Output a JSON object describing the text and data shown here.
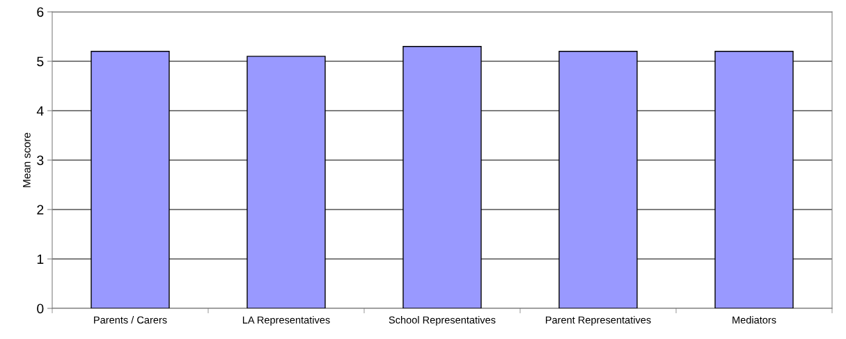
{
  "chart_data": {
    "type": "bar",
    "ylabel": "Mean score",
    "categories": [
      "Parents / Carers",
      "LA Representatives",
      "School Representatives",
      "Parent Representatives",
      "Mediators"
    ],
    "values": [
      5.2,
      5.1,
      5.3,
      5.2,
      5.2
    ],
    "color": "#9999ff",
    "ylim": [
      0,
      6
    ],
    "yticks": [
      0,
      1,
      2,
      3,
      4,
      5,
      6
    ],
    "grid": "y"
  }
}
